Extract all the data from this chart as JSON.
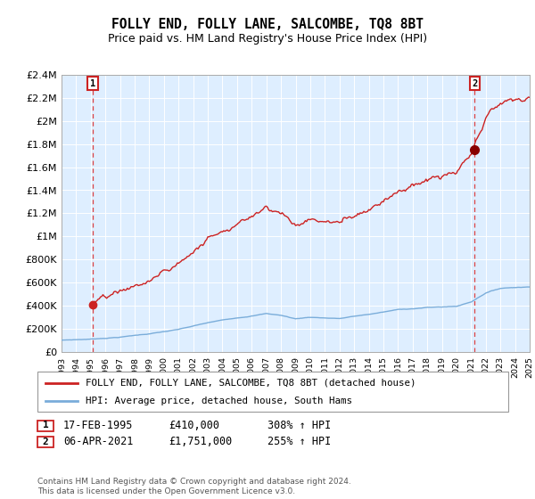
{
  "title": "FOLLY END, FOLLY LANE, SALCOMBE, TQ8 8BT",
  "subtitle": "Price paid vs. HM Land Registry's House Price Index (HPI)",
  "ylim": [
    0,
    2400000
  ],
  "yticks": [
    0,
    200000,
    400000,
    600000,
    800000,
    1000000,
    1200000,
    1400000,
    1600000,
    1800000,
    2000000,
    2200000,
    2400000
  ],
  "ytick_labels": [
    "£0",
    "£200K",
    "£400K",
    "£600K",
    "£800K",
    "£1M",
    "£1.2M",
    "£1.4M",
    "£1.6M",
    "£1.8M",
    "£2M",
    "£2.2M",
    "£2.4M"
  ],
  "hpi_color": "#7aadda",
  "price_color": "#cc2222",
  "background_color": "#deeeff",
  "sale1_year": 1995.12,
  "sale1_price": 410000,
  "sale2_year": 2021.25,
  "sale2_price": 1751000,
  "legend_line1": "FOLLY END, FOLLY LANE, SALCOMBE, TQ8 8BT (detached house)",
  "legend_line2": "HPI: Average price, detached house, South Hams",
  "note1_label": "1",
  "note1_date": "17-FEB-1995",
  "note1_price": "£410,000",
  "note1_hpi": "308% ↑ HPI",
  "note2_label": "2",
  "note2_date": "06-APR-2021",
  "note2_price": "£1,751,000",
  "note2_hpi": "255% ↑ HPI",
  "footer": "Contains HM Land Registry data © Crown copyright and database right 2024.\nThis data is licensed under the Open Government Licence v3.0."
}
